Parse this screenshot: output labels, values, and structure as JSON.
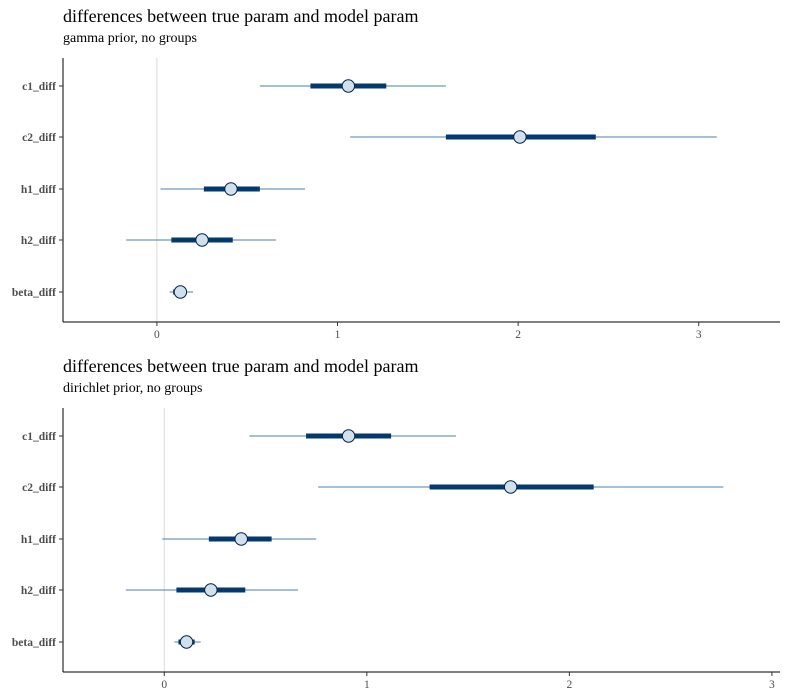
{
  "chart_data": [
    {
      "type": "interval",
      "title": "differences between true param and model param",
      "subtitle": "gamma prior, no groups",
      "categories": [
        "c1_diff",
        "c2_diff",
        "h1_diff",
        "h2_diff",
        "beta_diff"
      ],
      "median": [
        1.06,
        2.01,
        0.41,
        0.25,
        0.13
      ],
      "inner_low": [
        0.85,
        1.6,
        0.26,
        0.08,
        0.09
      ],
      "inner_high": [
        1.27,
        2.43,
        0.57,
        0.42,
        0.16
      ],
      "outer_low": [
        0.57,
        1.07,
        0.02,
        -0.17,
        0.07
      ],
      "outer_high": [
        1.6,
        3.1,
        0.82,
        0.66,
        0.2
      ],
      "xlim": [
        -0.52,
        3.45
      ],
      "xticks": [
        0,
        1,
        2,
        3
      ],
      "zero_line": 0,
      "colors": {
        "outer": "#4b7fa8",
        "inner": "#03396c",
        "point_fill": "#d1e1ec",
        "point_stroke": "#011f4b",
        "zero": "#d9d9d9"
      }
    },
    {
      "type": "interval",
      "title": "differences between true param and model param",
      "subtitle": "dirichlet prior, no groups",
      "categories": [
        "c1_diff",
        "c2_diff",
        "h1_diff",
        "h2_diff",
        "beta_diff"
      ],
      "median": [
        0.91,
        1.71,
        0.38,
        0.23,
        0.11
      ],
      "inner_low": [
        0.7,
        1.31,
        0.22,
        0.06,
        0.07
      ],
      "inner_high": [
        1.12,
        2.12,
        0.53,
        0.4,
        0.15
      ],
      "outer_low": [
        0.42,
        0.76,
        -0.01,
        -0.19,
        0.05
      ],
      "outer_high": [
        1.44,
        2.76,
        0.75,
        0.66,
        0.18
      ],
      "xlim": [
        -0.5,
        3.04
      ],
      "xticks": [
        0,
        1,
        2,
        3
      ],
      "zero_line": 0,
      "colors": {
        "outer": "#4b7fa8",
        "inner": "#03396c",
        "point_fill": "#d1e1ec",
        "point_stroke": "#011f4b",
        "zero": "#d9d9d9"
      }
    }
  ]
}
